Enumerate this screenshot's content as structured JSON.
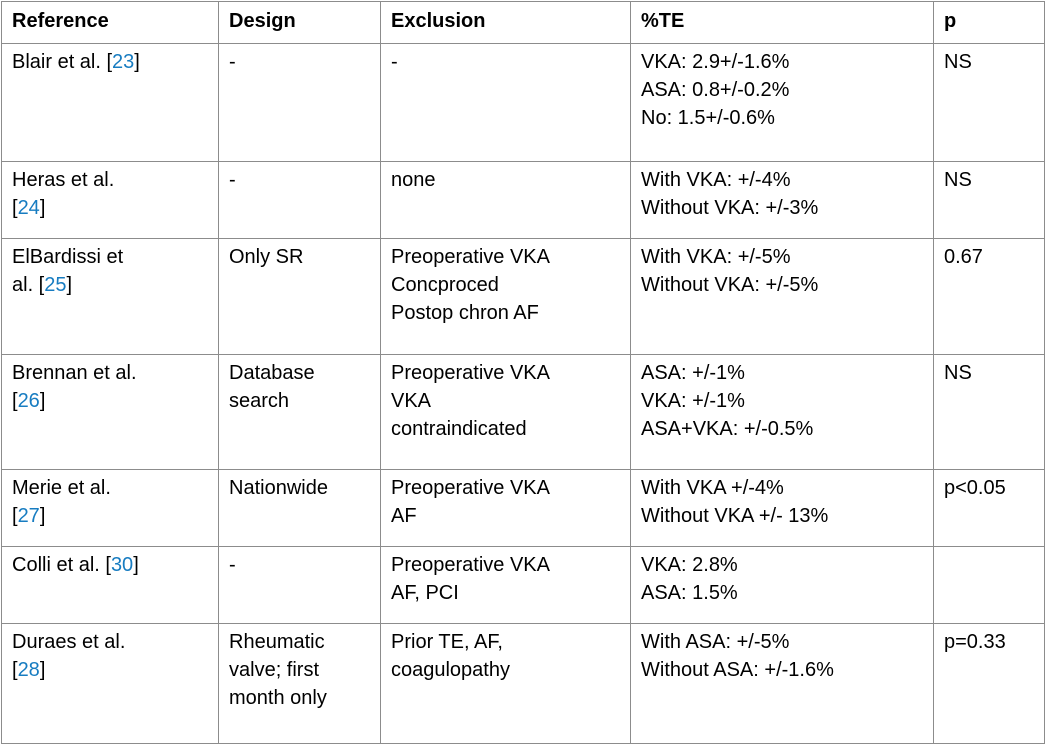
{
  "colors": {
    "link_blue": "#177cc1",
    "grid_border": "#8c8c8c",
    "text": "#000000",
    "background": "#ffffff"
  },
  "table": {
    "headers": [
      "Reference",
      "Design",
      "Exclusion",
      "%TE",
      "p"
    ],
    "rows": [
      {
        "reference": {
          "pre": "Blair et al. [",
          "num": "23",
          "post": "]"
        },
        "design": "-",
        "exclusion": "-",
        "te": "VKA: 2.9+/-1.6%\nASA: 0.8+/-0.2%\nNo: 1.5+/-0.6%",
        "p": "NS"
      },
      {
        "reference": {
          "pre": "Heras et al.\n[",
          "num": "24",
          "post": "]"
        },
        "design": "-",
        "exclusion": "none",
        "te": "With VKA: +/-4%\nWithout VKA: +/-3%",
        "p": "NS"
      },
      {
        "reference": {
          "pre": "ElBardissi et\nal. [",
          "num": "25",
          "post": "]"
        },
        "design": "Only SR",
        "exclusion": "Preoperative VKA\nConcproced\nPostop chron AF",
        "te": "With VKA: +/-5%\nWithout VKA: +/-5%",
        "p": "0.67"
      },
      {
        "reference": {
          "pre": "Brennan et al.\n[",
          "num": "26",
          "post": "]"
        },
        "design": "Database\nsearch",
        "exclusion": "Preoperative VKA\nVKA\ncontraindicated",
        "te": "ASA: +/-1%\nVKA: +/-1%\nASA+VKA: +/-0.5%",
        "p": "NS"
      },
      {
        "reference": {
          "pre": "Merie et al.\n[",
          "num": "27",
          "post": "]"
        },
        "design": "Nationwide",
        "exclusion": "Preoperative VKA\nAF",
        "te": "With VKA +/-4%\nWithout VKA +/- 13%",
        "p": "p<0.05"
      },
      {
        "reference": {
          "pre": "Colli et al. [",
          "num": "30",
          "post": "]"
        },
        "design": "-",
        "exclusion": "Preoperative VKA\nAF, PCI",
        "te": "VKA: 2.8%\nASA: 1.5%",
        "p": ""
      },
      {
        "reference": {
          "pre": "Duraes et al.\n[",
          "num": "28",
          "post": "]"
        },
        "design": "Rheumatic\nvalve; first\nmonth only",
        "exclusion": "Prior TE, AF,\ncoagulopathy",
        "te": "With ASA: +/-5%\nWithout ASA: +/-1.6%",
        "p": "p=0.33"
      }
    ]
  }
}
